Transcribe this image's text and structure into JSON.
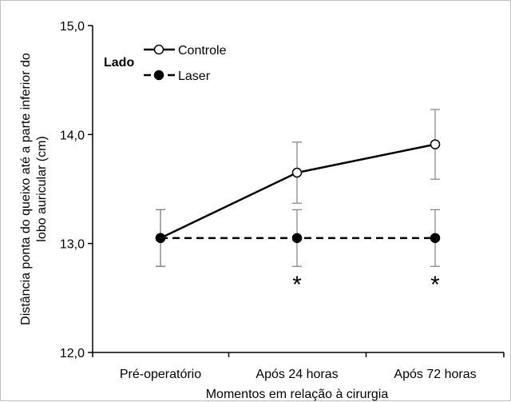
{
  "chart_data": {
    "type": "line",
    "categories": [
      "Pré-operatório",
      "Após 24 horas",
      "Após 72 horas"
    ],
    "series": [
      {
        "name": "Controle",
        "values": [
          13.05,
          13.65,
          13.91
        ],
        "error": [
          0.26,
          0.28,
          0.32
        ],
        "line_style": "solid",
        "marker": "open-circle"
      },
      {
        "name": "Laser",
        "values": [
          13.05,
          13.05,
          13.05
        ],
        "error": [
          0.26,
          0.26,
          0.26
        ],
        "line_style": "dashed",
        "marker": "filled-circle"
      }
    ],
    "legend_title": "Lado",
    "legend_position": "top-left",
    "xlabel": "Momentos em relação à cirurgia",
    "ylabel": "Distância ponta do queixo até a parte inferior do lobo auricular (cm)",
    "ylabel_lines": [
      "Distância ponta do queixo até a parte inferior do",
      "lobo auricular (cm)"
    ],
    "ylim": [
      12.0,
      15.0
    ],
    "yticks": [
      12.0,
      13.0,
      14.0,
      15.0
    ],
    "ytick_labels": [
      "12,0",
      "13,0",
      "14,0",
      "15,0"
    ],
    "annotations": [
      {
        "text": "*",
        "category_index": 1
      },
      {
        "text": "*",
        "category_index": 2
      }
    ],
    "grid": false,
    "colors": {
      "line": "#000000",
      "error_bar": "#808080",
      "axis": "#000000"
    }
  }
}
